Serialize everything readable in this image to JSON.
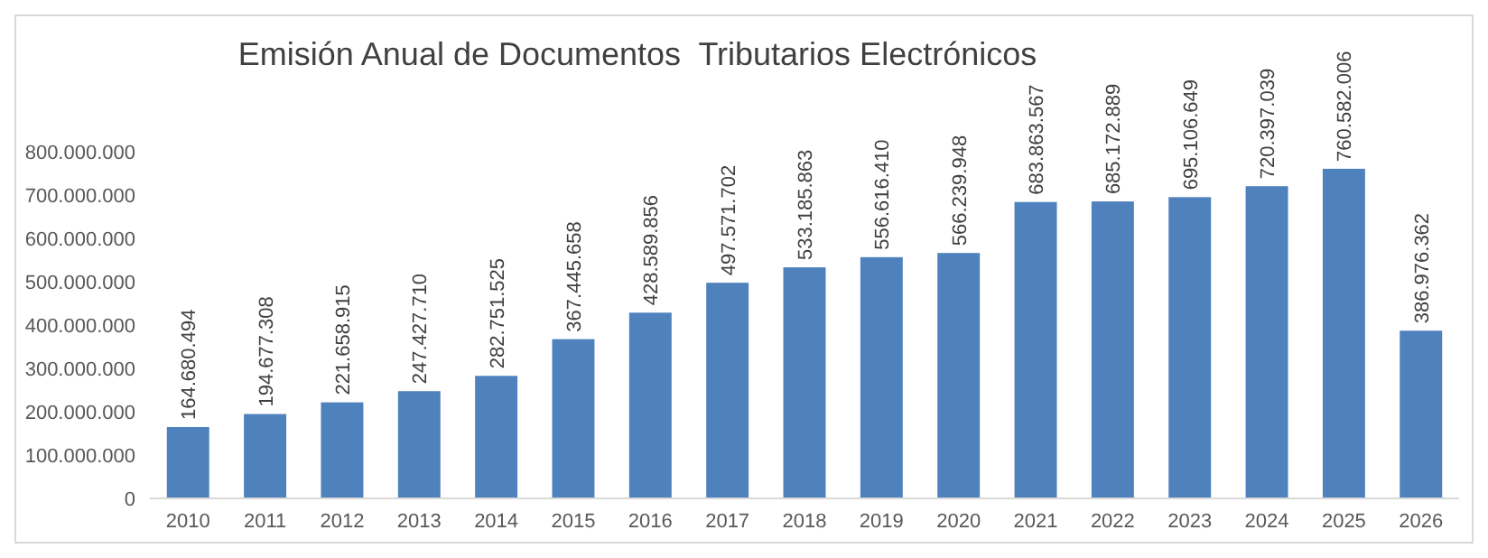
{
  "chart_data": {
    "type": "bar",
    "title": "Emisión Anual de Documentos  Tributarios Electrónicos",
    "categories": [
      "2010",
      "2011",
      "2012",
      "2013",
      "2014",
      "2015",
      "2016",
      "2017",
      "2018",
      "2019",
      "2020",
      "2021",
      "2022",
      "2023",
      "2024",
      "2025",
      "2026"
    ],
    "values": [
      164680494,
      194677308,
      221658915,
      247427710,
      282751525,
      367445658,
      428589856,
      497571702,
      533185863,
      556616410,
      566239948,
      683863567,
      685172889,
      695106649,
      720397039,
      760582006,
      386976362
    ],
    "value_labels": [
      "164.680.494",
      "194.677.308",
      "221.658.915",
      "247.427.710",
      "282.751.525",
      "367.445.658",
      "428.589.856",
      "497.571.702",
      "533.185.863",
      "556.616.410",
      "566.239.948",
      "683.863.567",
      "685.172.889",
      "695.106.649",
      "720.397.039",
      "760.582.006",
      "386.976.362"
    ],
    "color": "#4f81bd",
    "ylim": [
      0,
      800000000
    ],
    "yticks": [
      0,
      {
        "value": 100000000,
        "label": "100.000.000"
      },
      {
        "value": 200000000,
        "label": "200.000.000"
      },
      {
        "value": 300000000,
        "label": "300.000.000"
      },
      {
        "value": 400000000,
        "label": "400.000.000"
      },
      {
        "value": 500000000,
        "label": "500.000.000"
      },
      {
        "value": 600000000,
        "label": "600.000.000"
      },
      {
        "value": 700000000,
        "label": "700.000.000"
      },
      {
        "value": 800000000,
        "label": "800.000.000"
      }
    ]
  }
}
